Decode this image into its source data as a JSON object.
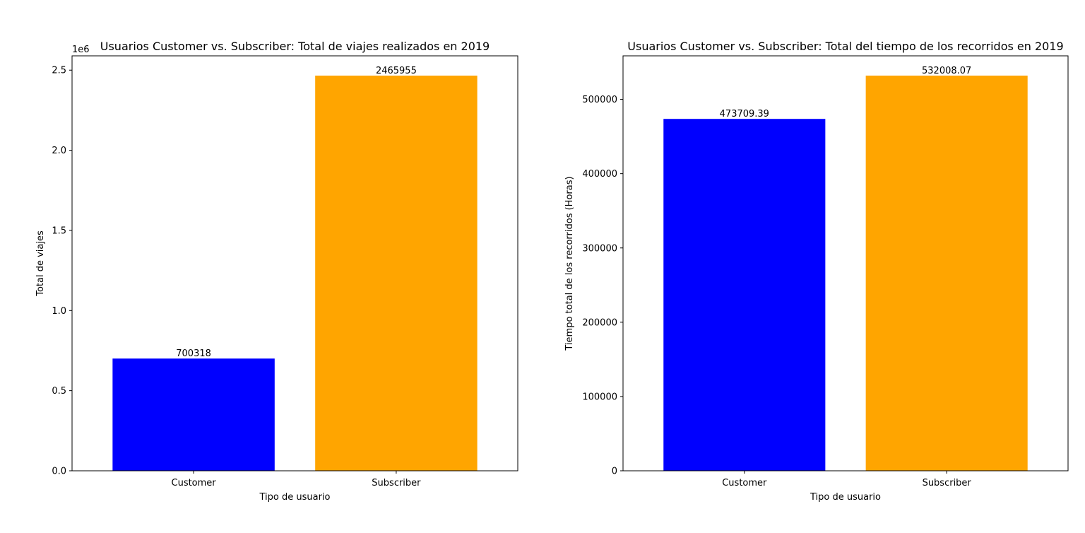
{
  "chart_data": [
    {
      "type": "bar",
      "title": "Usuarios Customer vs. Subscriber: Total de viajes realizados en 2019",
      "xlabel": "Tipo de usuario",
      "ylabel": "Total de viajes",
      "offset_text": "1e6",
      "categories": [
        "Customer",
        "Subscriber"
      ],
      "values": [
        700318,
        2465955
      ],
      "data_labels": [
        "700318",
        "2465955"
      ],
      "colors": [
        "#0000ff",
        "#ffa500"
      ],
      "ylim": [
        0,
        2589253
      ],
      "yticks": [
        0,
        500000,
        1000000,
        1500000,
        2000000,
        2500000
      ],
      "ytick_labels": [
        "0.0",
        "0.5",
        "1.0",
        "1.5",
        "2.0",
        "2.5"
      ],
      "grid": false,
      "legend": false
    },
    {
      "type": "bar",
      "title": "Usuarios Customer vs. Subscriber: Total del tiempo de los recorridos en 2019",
      "xlabel": "Tipo de usuario",
      "ylabel": "Tiempo total de los recorridos (Horas)",
      "offset_text": "",
      "categories": [
        "Customer",
        "Subscriber"
      ],
      "values": [
        473709.39,
        532008.07
      ],
      "data_labels": [
        "473709.39",
        "532008.07"
      ],
      "colors": [
        "#0000ff",
        "#ffa500"
      ],
      "ylim": [
        0,
        558608
      ],
      "yticks": [
        0,
        100000,
        200000,
        300000,
        400000,
        500000
      ],
      "ytick_labels": [
        "0",
        "100000",
        "200000",
        "300000",
        "400000",
        "500000"
      ],
      "grid": false,
      "legend": false
    }
  ]
}
